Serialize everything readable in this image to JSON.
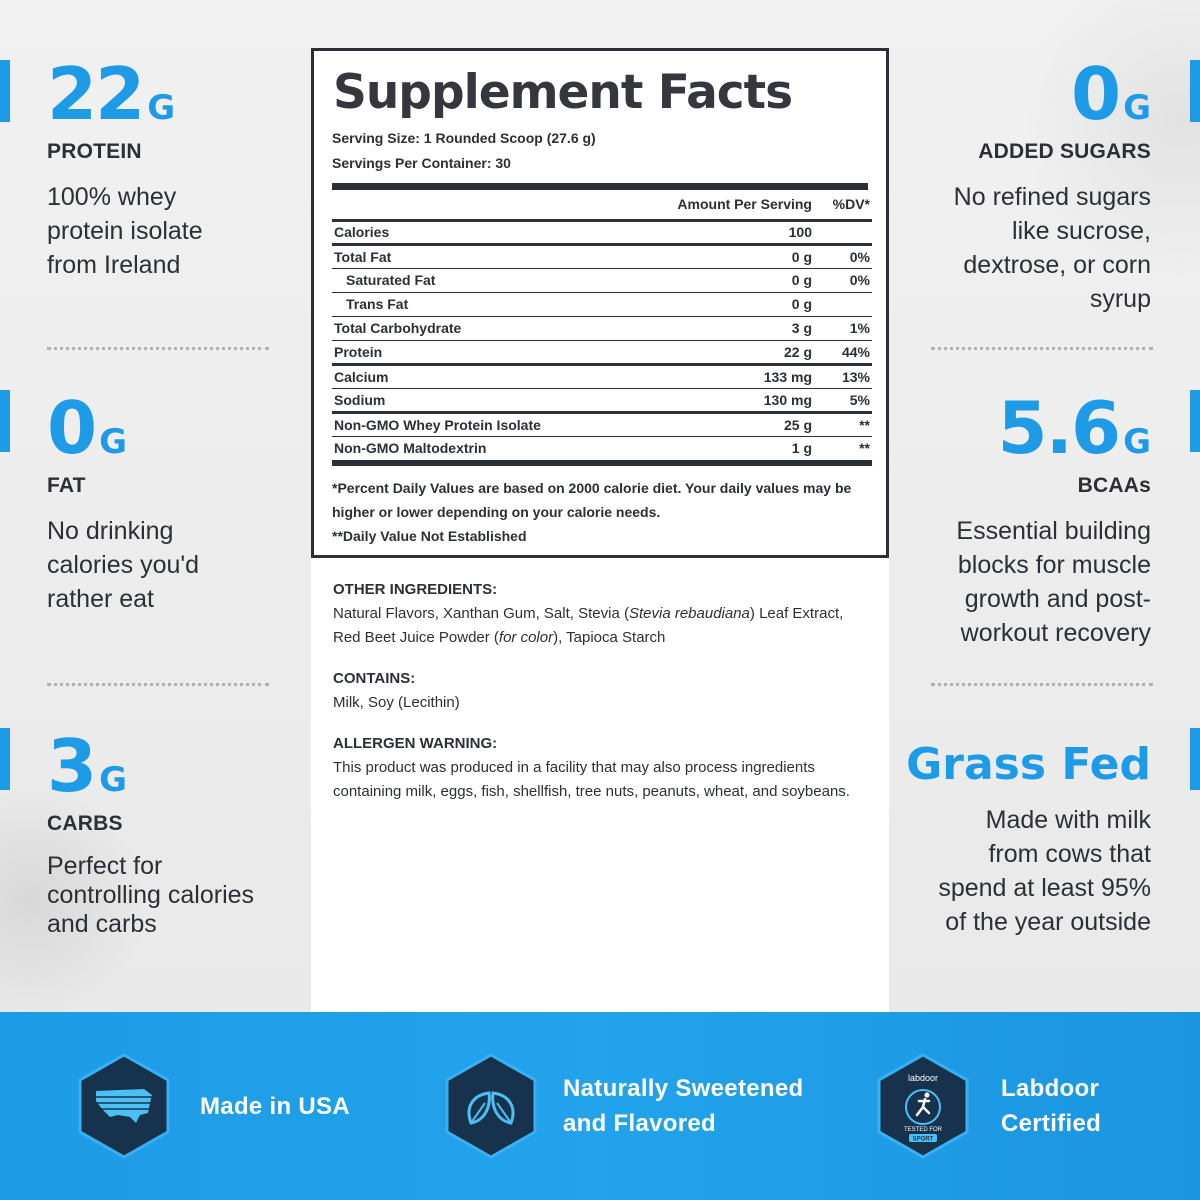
{
  "left_features": [
    {
      "number": "22",
      "unit": "G",
      "label": "PROTEIN",
      "desc": [
        "100% whey",
        "protein isolate",
        "from Ireland"
      ]
    },
    {
      "number": "0",
      "unit": "G",
      "label": "FAT",
      "desc": [
        "No drinking",
        "calories you'd",
        "rather eat"
      ]
    },
    {
      "number": "3",
      "unit": "G",
      "label": "CARBS",
      "desc": [
        "Perfect for",
        "controlling calories",
        "and carbs"
      ]
    }
  ],
  "right_features": [
    {
      "number": "0",
      "unit": "G",
      "label": "ADDED SUGARS",
      "desc": [
        "No refined sugars",
        "like sucrose,",
        "dextrose, or corn",
        "syrup"
      ]
    },
    {
      "number": "5.6",
      "unit": "G",
      "label": "BCAAs",
      "desc": [
        "Essential building",
        "blocks for muscle",
        "growth and post-",
        "workout recovery"
      ]
    },
    {
      "title": "Grass Fed",
      "desc": [
        "Made with milk",
        "from cows that",
        "spend at least 95%",
        "of the year outside"
      ]
    }
  ],
  "facts": {
    "title": "Supplement Facts",
    "serving_size": "Serving Size: 1 Rounded Scoop (27.6 g)",
    "servings_per_container": "Servings Per Container: 30",
    "header_amount": "Amount Per Serving",
    "header_dv": "%DV*",
    "rows": [
      {
        "name": "Calories",
        "amount": "100",
        "dv": ""
      },
      {
        "name": "Total Fat",
        "amount": "0 g",
        "dv": "0%"
      },
      {
        "name": "Saturated Fat",
        "amount": "0 g",
        "dv": "0%"
      },
      {
        "name": "Trans Fat",
        "amount": "0 g",
        "dv": ""
      },
      {
        "name": "Total Carbohydrate",
        "amount": "3 g",
        "dv": "1%"
      },
      {
        "name": "Protein",
        "amount": "22 g",
        "dv": "44%"
      },
      {
        "name": "Calcium",
        "amount": "133 mg",
        "dv": "13%"
      },
      {
        "name": "Sodium",
        "amount": "130 mg",
        "dv": "5%"
      },
      {
        "name": "Non-GMO Whey Protein Isolate",
        "amount": "25 g",
        "dv": "**"
      },
      {
        "name": "Non-GMO Maltodextrin",
        "amount": "1 g",
        "dv": "**"
      }
    ],
    "footnote_1": "*Percent Daily Values are based on 2000 calorie diet. Your daily values may be higher or lower depending on your calorie needs.",
    "footnote_2": "**Daily Value Not Established"
  },
  "ingredients": {
    "other_head": "OTHER INGREDIENTS:",
    "other_1": "Natural Flavors, Xanthan Gum, Salt, Stevia (",
    "other_italic_1": "Stevia rebaudiana",
    "other_2": ") Leaf Extract, Red Beet Juice Powder (",
    "other_italic_2": "for color",
    "other_3": "), Tapioca Starch",
    "contains_head": "CONTAINS:",
    "contains": "Milk, Soy (Lecithin)",
    "allergen_head": "ALLERGEN WARNING:",
    "allergen": "This product was produced in a facility that may also process ingredients containing milk, eggs, fish, shellfish, tree nuts, peanuts, wheat, and soybeans."
  },
  "badges": [
    {
      "icon": "usa-map-icon",
      "lines": [
        "Made in USA"
      ]
    },
    {
      "icon": "leaves-icon",
      "lines": [
        "Naturally Sweetened",
        "and Flavored"
      ]
    },
    {
      "icon": "labdoor-icon",
      "lines": [
        "Labdoor",
        "Certified"
      ],
      "logo_text": [
        "labdoor",
        "TESTED FOR",
        "SPORT"
      ]
    }
  ],
  "colors": {
    "accent": "#1e9be6",
    "text": "#2b2f36",
    "band": "#1e9be6",
    "hex_fill": "#1a3550"
  }
}
